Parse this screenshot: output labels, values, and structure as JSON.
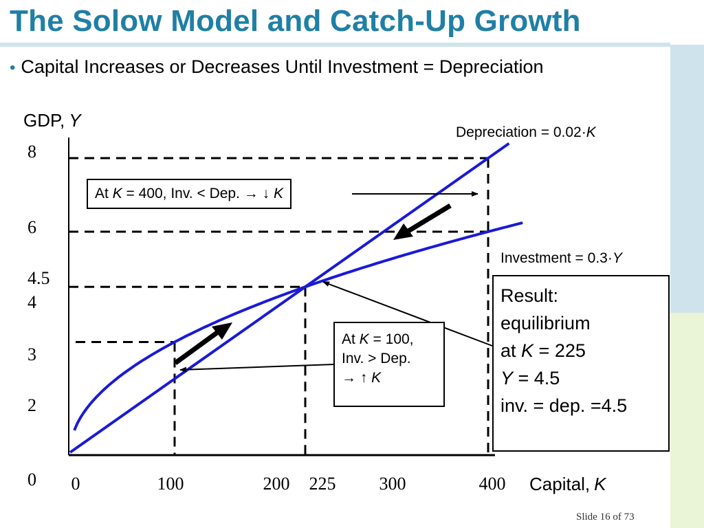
{
  "slide": {
    "title": "The Solow Model and Catch-Up Growth",
    "bullet": "Capital Increases or Decreases Until Investment = Depreciation",
    "footer": "Slide 16 of 73",
    "colors": {
      "title": "#1f7fa6",
      "curves": "#1a1ad6",
      "arrows": "#000000"
    }
  },
  "chart_data": {
    "type": "line",
    "x_axis": {
      "label": "Capital,",
      "label_var": "K",
      "ticks": [
        "0",
        "100",
        "200",
        "225",
        "300",
        "400"
      ],
      "range": [
        0,
        400
      ]
    },
    "y_axis": {
      "label": "GDP,",
      "label_var": "Y",
      "ticks": [
        "0",
        "2",
        "3",
        "4",
        "4.5",
        "6",
        "8"
      ],
      "range": [
        0,
        8
      ]
    },
    "series": [
      {
        "name": "Depreciation = 0.02·K",
        "label_prefix": "Depreciation = 0.02·",
        "label_var": "K",
        "x": [
          0,
          100,
          200,
          225,
          300,
          400
        ],
        "y": [
          0,
          2,
          4,
          4.5,
          6,
          8
        ]
      },
      {
        "name": "Investment = 0.3·Y",
        "label_prefix": "Investment = 0.3·",
        "label_var": "Y",
        "x": [
          0,
          25,
          50,
          100,
          150,
          200,
          225,
          250,
          300,
          350,
          400
        ],
        "y": [
          0,
          1.5,
          2.12,
          3,
          3.67,
          4.24,
          4.5,
          4.74,
          5.2,
          5.61,
          6
        ]
      }
    ],
    "reference_lines": {
      "horizontal_y": [
        3,
        4.5,
        6,
        8
      ],
      "vertical_x": [
        100,
        225,
        400
      ]
    },
    "annotations": {
      "at_400": {
        "pre": "At ",
        "var1": "K",
        "post": " = 400, Inv. < Dep. → ↓ ",
        "var2": "K"
      },
      "at_100": {
        "line1_pre": "At ",
        "line1_var": "K",
        "line1_post": " = 100,",
        "line2": "Inv. > Dep.",
        "line3_pre": "→ ↑ ",
        "line3_var": "K"
      },
      "result": {
        "line1": "Result:",
        "line2": "equilibrium",
        "line3_pre": "at ",
        "line3_var": "K",
        "line3_post": " = 225",
        "line4_var": "Y",
        "line4_post": " = 4.5",
        "line5": "inv. = dep. =4.5"
      }
    }
  }
}
